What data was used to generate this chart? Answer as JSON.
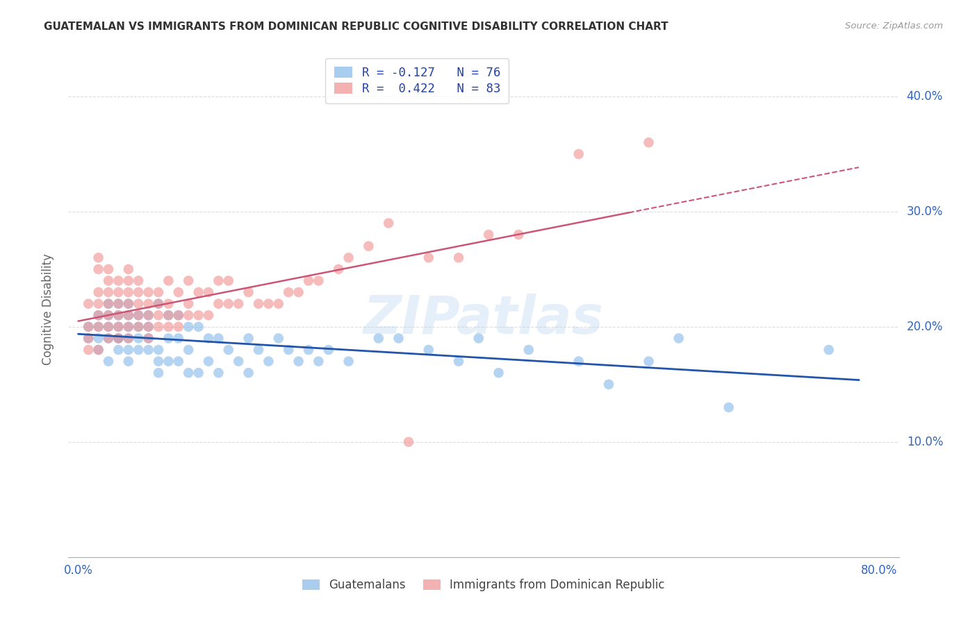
{
  "title": "GUATEMALAN VS IMMIGRANTS FROM DOMINICAN REPUBLIC COGNITIVE DISABILITY CORRELATION CHART",
  "source": "Source: ZipAtlas.com",
  "ylabel": "Cognitive Disability",
  "ytick_labels": [
    "10.0%",
    "20.0%",
    "30.0%",
    "40.0%"
  ],
  "ytick_values": [
    0.1,
    0.2,
    0.3,
    0.4
  ],
  "ylim": [
    0.0,
    0.43
  ],
  "xlim": [
    -0.01,
    0.82
  ],
  "legend_entries": [
    {
      "label": "R = -0.127   N = 76",
      "color": "#85b8e8"
    },
    {
      "label": "R =  0.422   N = 83",
      "color": "#f09090"
    }
  ],
  "legend_labels_bottom": [
    "Guatemalans",
    "Immigrants from Dominican Republic"
  ],
  "blue_color": "#85b8e8",
  "pink_color": "#f09090",
  "blue_line_color": "#2255aa",
  "pink_line_color": "#cc5577",
  "grid_color": "#dddddd",
  "title_color": "#333333",
  "axis_label_color": "#666666",
  "tick_color": "#3366bb",
  "background_color": "#ffffff",
  "blue_scatter_x": [
    0.01,
    0.01,
    0.02,
    0.02,
    0.02,
    0.02,
    0.03,
    0.03,
    0.03,
    0.03,
    0.03,
    0.04,
    0.04,
    0.04,
    0.04,
    0.04,
    0.04,
    0.05,
    0.05,
    0.05,
    0.05,
    0.05,
    0.05,
    0.06,
    0.06,
    0.06,
    0.06,
    0.07,
    0.07,
    0.07,
    0.07,
    0.08,
    0.08,
    0.08,
    0.08,
    0.09,
    0.09,
    0.09,
    0.1,
    0.1,
    0.1,
    0.11,
    0.11,
    0.11,
    0.12,
    0.12,
    0.13,
    0.13,
    0.14,
    0.14,
    0.15,
    0.16,
    0.17,
    0.17,
    0.18,
    0.19,
    0.2,
    0.21,
    0.22,
    0.23,
    0.24,
    0.25,
    0.27,
    0.3,
    0.32,
    0.35,
    0.38,
    0.4,
    0.42,
    0.45,
    0.5,
    0.53,
    0.57,
    0.6,
    0.65,
    0.75
  ],
  "blue_scatter_y": [
    0.19,
    0.2,
    0.18,
    0.19,
    0.2,
    0.21,
    0.17,
    0.19,
    0.2,
    0.21,
    0.22,
    0.18,
    0.19,
    0.2,
    0.21,
    0.22,
    0.19,
    0.17,
    0.18,
    0.19,
    0.2,
    0.21,
    0.22,
    0.18,
    0.19,
    0.2,
    0.21,
    0.18,
    0.19,
    0.2,
    0.21,
    0.16,
    0.17,
    0.18,
    0.22,
    0.17,
    0.19,
    0.21,
    0.17,
    0.19,
    0.21,
    0.16,
    0.18,
    0.2,
    0.16,
    0.2,
    0.17,
    0.19,
    0.16,
    0.19,
    0.18,
    0.17,
    0.16,
    0.19,
    0.18,
    0.17,
    0.19,
    0.18,
    0.17,
    0.18,
    0.17,
    0.18,
    0.17,
    0.19,
    0.19,
    0.18,
    0.17,
    0.19,
    0.16,
    0.18,
    0.17,
    0.15,
    0.17,
    0.19,
    0.13,
    0.18
  ],
  "pink_scatter_x": [
    0.01,
    0.01,
    0.01,
    0.01,
    0.02,
    0.02,
    0.02,
    0.02,
    0.02,
    0.02,
    0.02,
    0.03,
    0.03,
    0.03,
    0.03,
    0.03,
    0.03,
    0.03,
    0.04,
    0.04,
    0.04,
    0.04,
    0.04,
    0.04,
    0.05,
    0.05,
    0.05,
    0.05,
    0.05,
    0.05,
    0.05,
    0.06,
    0.06,
    0.06,
    0.06,
    0.06,
    0.07,
    0.07,
    0.07,
    0.07,
    0.07,
    0.08,
    0.08,
    0.08,
    0.08,
    0.09,
    0.09,
    0.09,
    0.09,
    0.1,
    0.1,
    0.1,
    0.11,
    0.11,
    0.11,
    0.12,
    0.12,
    0.13,
    0.13,
    0.14,
    0.14,
    0.15,
    0.15,
    0.16,
    0.17,
    0.18,
    0.19,
    0.2,
    0.21,
    0.22,
    0.23,
    0.24,
    0.26,
    0.27,
    0.29,
    0.31,
    0.33,
    0.35,
    0.38,
    0.41,
    0.44,
    0.5,
    0.57
  ],
  "pink_scatter_y": [
    0.18,
    0.19,
    0.2,
    0.22,
    0.18,
    0.2,
    0.21,
    0.22,
    0.23,
    0.25,
    0.26,
    0.19,
    0.2,
    0.21,
    0.22,
    0.23,
    0.24,
    0.25,
    0.19,
    0.2,
    0.21,
    0.22,
    0.23,
    0.24,
    0.19,
    0.2,
    0.21,
    0.22,
    0.23,
    0.24,
    0.25,
    0.2,
    0.21,
    0.22,
    0.23,
    0.24,
    0.19,
    0.2,
    0.21,
    0.22,
    0.23,
    0.2,
    0.21,
    0.22,
    0.23,
    0.2,
    0.21,
    0.22,
    0.24,
    0.2,
    0.21,
    0.23,
    0.21,
    0.22,
    0.24,
    0.21,
    0.23,
    0.21,
    0.23,
    0.22,
    0.24,
    0.22,
    0.24,
    0.22,
    0.23,
    0.22,
    0.22,
    0.22,
    0.23,
    0.23,
    0.24,
    0.24,
    0.25,
    0.26,
    0.27,
    0.29,
    0.1,
    0.26,
    0.26,
    0.28,
    0.28,
    0.35,
    0.36
  ]
}
